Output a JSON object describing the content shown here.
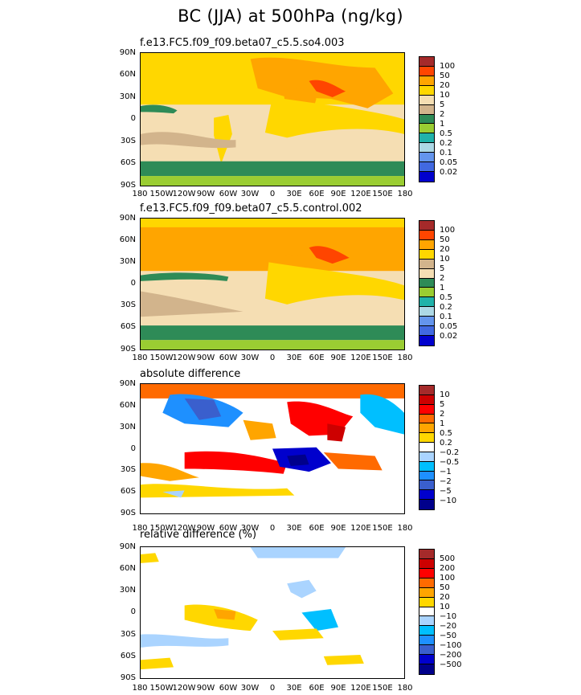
{
  "title": "BC (JJA) at 500hPa (ng/kg)",
  "chart_data": [
    {
      "type": "heatmap",
      "subtitle": "f.e13.FC5.f09_f09.beta07_c5.5.so4.003",
      "x_ticks": [
        "180",
        "150W",
        "120W",
        "90W",
        "60W",
        "30W",
        "0",
        "30E",
        "60E",
        "90E",
        "120E",
        "150E",
        "180"
      ],
      "y_ticks": [
        "90N",
        "60N",
        "30N",
        "0",
        "30S",
        "60S",
        "90S"
      ],
      "colorbar": {
        "levels": [
          "100",
          "50",
          "20",
          "10",
          "5",
          "2",
          "1",
          "0.5",
          "0.2",
          "0.1",
          "0.05",
          "0.02"
        ],
        "colors": [
          "#a52a2a",
          "#ff4500",
          "#ffa500",
          "#ffd700",
          "#f5deb3",
          "#d2b48c",
          "#2e8b57",
          "#9acd32",
          "#20b2aa",
          "#add8e6",
          "#6495ed",
          "#4169e1",
          "#0000cd"
        ]
      }
    },
    {
      "type": "heatmap",
      "subtitle": "f.e13.FC5.f09_f09.beta07_c5.5.control.002",
      "x_ticks": [
        "180",
        "150W",
        "120W",
        "90W",
        "60W",
        "30W",
        "0",
        "30E",
        "60E",
        "90E",
        "120E",
        "150E",
        "180"
      ],
      "y_ticks": [
        "90N",
        "60N",
        "30N",
        "0",
        "30S",
        "60S",
        "90S"
      ],
      "colorbar": {
        "levels": [
          "100",
          "50",
          "20",
          "10",
          "5",
          "2",
          "1",
          "0.5",
          "0.2",
          "0.1",
          "0.05",
          "0.02"
        ],
        "colors": [
          "#a52a2a",
          "#ff4500",
          "#ffa500",
          "#ffd700",
          "#d2b48c",
          "#f5deb3",
          "#2e8b57",
          "#9acd32",
          "#20b2aa",
          "#add8e6",
          "#6495ed",
          "#4169e1",
          "#0000cd"
        ]
      }
    },
    {
      "type": "heatmap",
      "subtitle": "absolute difference",
      "x_ticks": [
        "180",
        "150W",
        "120W",
        "90W",
        "60W",
        "30W",
        "0",
        "30E",
        "60E",
        "90E",
        "120E",
        "150E",
        "180"
      ],
      "y_ticks": [
        "90N",
        "60N",
        "30N",
        "0",
        "30S",
        "60S",
        "90S"
      ],
      "colorbar": {
        "levels": [
          "10",
          "5",
          "2",
          "1",
          "0.5",
          "0.2",
          "−0.2",
          "−0.5",
          "−1",
          "−2",
          "−5",
          "−10"
        ],
        "colors": [
          "#a52a2a",
          "#cd0000",
          "#ff0000",
          "#ff6a00",
          "#ffa500",
          "#ffd700",
          "#ffffff",
          "#aad4ff",
          "#00bfff",
          "#1e90ff",
          "#3a5fcd",
          "#0000cd",
          "#00008b"
        ]
      }
    },
    {
      "type": "heatmap",
      "subtitle": "relative difference (%)",
      "x_ticks": [
        "180",
        "150W",
        "120W",
        "90W",
        "60W",
        "30W",
        "0",
        "30E",
        "60E",
        "90E",
        "120E",
        "150E",
        "180"
      ],
      "y_ticks": [
        "90N",
        "60N",
        "30N",
        "0",
        "30S",
        "60S",
        "90S"
      ],
      "colorbar": {
        "levels": [
          "500",
          "200",
          "100",
          "50",
          "20",
          "10",
          "−10",
          "−20",
          "−50",
          "−100",
          "−200",
          "−500"
        ],
        "colors": [
          "#a52a2a",
          "#cd0000",
          "#ff0000",
          "#ff6a00",
          "#ffa500",
          "#ffd700",
          "#ffffff",
          "#aad4ff",
          "#00bfff",
          "#1e90ff",
          "#3a5fcd",
          "#0000cd",
          "#00008b"
        ]
      }
    }
  ]
}
